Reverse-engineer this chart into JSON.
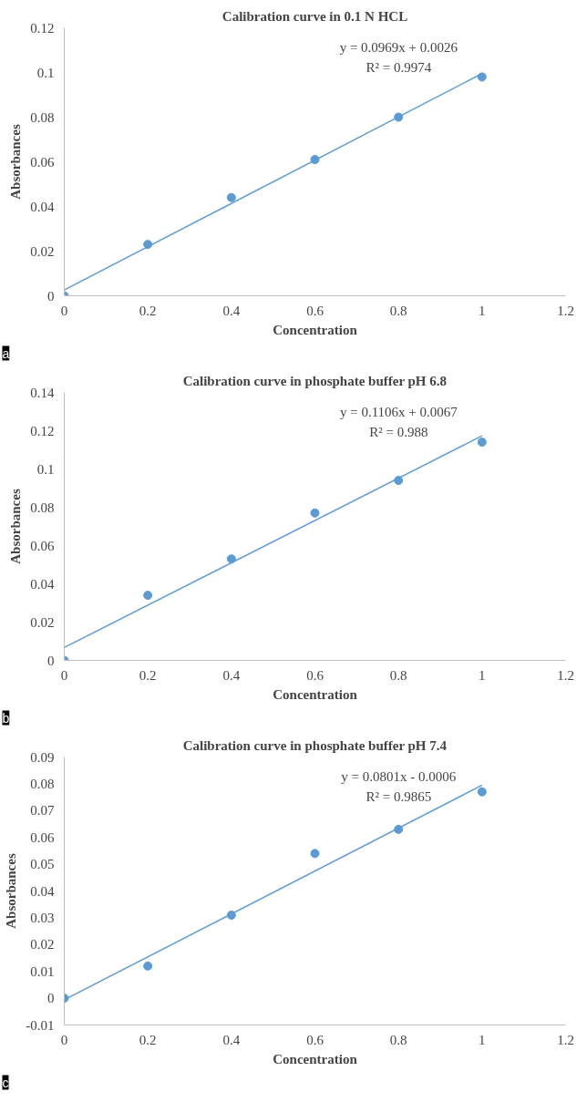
{
  "chart_data": [
    {
      "type": "scatter",
      "title": "Calibration curve in 0.1 N HCL",
      "xlabel": "Concentration",
      "ylabel": "Absorbances",
      "xlim": [
        0,
        1.2
      ],
      "xticks": [
        0,
        0.2,
        0.4,
        0.6,
        0.8,
        1,
        1.2
      ],
      "ylim": [
        0,
        0.12
      ],
      "yticks": [
        0,
        0.02,
        0.04,
        0.06,
        0.08,
        0.1,
        0.12
      ],
      "grid": false,
      "series": [
        {
          "color": "#5b9bd5",
          "marker": "circle",
          "x": [
            0,
            0.2,
            0.4,
            0.6,
            0.8,
            1
          ],
          "values": [
            0,
            0.023,
            0.044,
            0.061,
            0.08,
            0.098
          ]
        },
        {
          "type": "line",
          "color": "#5b9bd5",
          "x": [
            0,
            1
          ],
          "values": [
            0.0026,
            0.0995
          ]
        }
      ],
      "annotations": [
        "y = 0.0969x + 0.0026",
        "R² = 0.9974",
        "a"
      ]
    },
    {
      "type": "scatter",
      "title": "Calibration curve in phosphate buffer pH 6.8",
      "xlabel": "Concentration",
      "ylabel": "Absorbances",
      "xlim": [
        0,
        1.2
      ],
      "xticks": [
        0,
        0.2,
        0.4,
        0.6,
        0.8,
        1,
        1.2
      ],
      "ylim": [
        0,
        0.14
      ],
      "yticks": [
        0,
        0.02,
        0.04,
        0.06,
        0.08,
        0.1,
        0.12,
        0.14
      ],
      "grid": false,
      "series": [
        {
          "color": "#5b9bd5",
          "marker": "circle",
          "x": [
            0,
            0.2,
            0.4,
            0.6,
            0.8,
            1
          ],
          "values": [
            0,
            0.034,
            0.053,
            0.077,
            0.094,
            0.114
          ]
        },
        {
          "type": "line",
          "color": "#5b9bd5",
          "x": [
            0,
            1
          ],
          "values": [
            0.0067,
            0.1173
          ]
        }
      ],
      "annotations": [
        "y = 0.1106x + 0.0067",
        "R² = 0.988",
        "b"
      ]
    },
    {
      "type": "scatter",
      "title": "Calibration curve in phosphate buffer pH 7.4",
      "xlabel": "Concentration",
      "ylabel": "Absorbances",
      "xlim": [
        0,
        1.2
      ],
      "xticks": [
        0,
        0.2,
        0.4,
        0.6,
        0.8,
        1,
        1.2
      ],
      "ylim": [
        -0.01,
        0.09
      ],
      "yticks": [
        -0.01,
        0,
        0.01,
        0.02,
        0.03,
        0.04,
        0.05,
        0.06,
        0.07,
        0.08,
        0.09
      ],
      "grid": false,
      "series": [
        {
          "color": "#5b9bd5",
          "marker": "circle",
          "x": [
            0,
            0.2,
            0.4,
            0.6,
            0.8,
            1
          ],
          "values": [
            0,
            0.012,
            0.031,
            0.054,
            0.063,
            0.077
          ]
        },
        {
          "type": "line",
          "color": "#5b9bd5",
          "x": [
            0,
            1
          ],
          "values": [
            -0.0006,
            0.0795
          ]
        }
      ],
      "annotations": [
        "y = 0.0801x - 0.0006",
        "R² = 0.9865",
        "c"
      ]
    }
  ]
}
